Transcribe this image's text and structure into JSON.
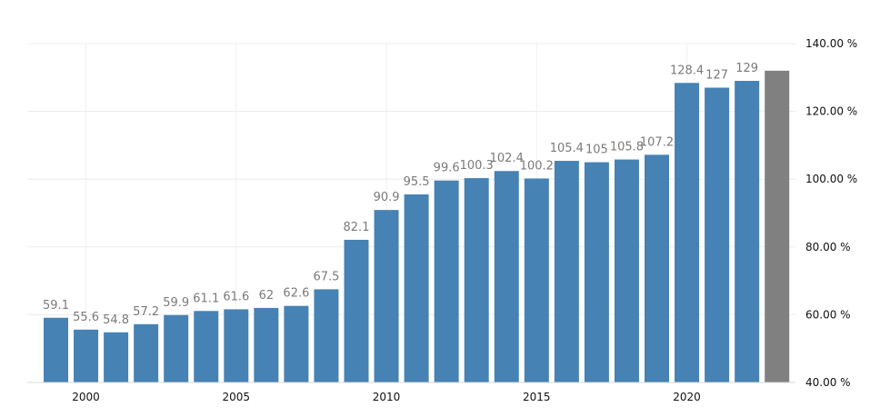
{
  "chart_data": {
    "type": "bar",
    "x": [
      1999,
      2000,
      2001,
      2002,
      2003,
      2004,
      2005,
      2006,
      2007,
      2008,
      2009,
      2010,
      2011,
      2012,
      2013,
      2014,
      2015,
      2016,
      2017,
      2018,
      2019,
      2020,
      2021,
      2022,
      2023
    ],
    "values": [
      59.1,
      55.6,
      54.8,
      57.2,
      59.9,
      61.1,
      61.6,
      62,
      62.6,
      67.5,
      82.1,
      90.9,
      95.5,
      99.6,
      100.3,
      102.4,
      100.2,
      105.4,
      105,
      105.8,
      107.2,
      128.4,
      127,
      129,
      132
    ],
    "data_labels": [
      "59.1",
      "55.6",
      "54.8",
      "57.2",
      "59.9",
      "61.1",
      "61.6",
      "62",
      "62.6",
      "67.5",
      "82.1",
      "90.9",
      "95.5",
      "99.6",
      "100.3",
      "102.4",
      "100.2",
      "105.4",
      "105",
      "105.8",
      "107.2",
      "128.4",
      "127",
      "129",
      ""
    ],
    "bar_colors": [
      "#4682b4",
      "#4682b4",
      "#4682b4",
      "#4682b4",
      "#4682b4",
      "#4682b4",
      "#4682b4",
      "#4682b4",
      "#4682b4",
      "#4682b4",
      "#4682b4",
      "#4682b4",
      "#4682b4",
      "#4682b4",
      "#4682b4",
      "#4682b4",
      "#4682b4",
      "#4682b4",
      "#4682b4",
      "#4682b4",
      "#4682b4",
      "#4682b4",
      "#4682b4",
      "#4682b4",
      "#808080"
    ],
    "x_ticks": [
      2000,
      2005,
      2010,
      2015,
      2020
    ],
    "y_ticks": [
      40,
      60,
      80,
      100,
      120,
      140
    ],
    "y_tick_labels": [
      "40.00 %",
      "60.00 %",
      "80.00 %",
      "100.00 %",
      "120.00 %",
      "140.00 %"
    ],
    "ylim": [
      40,
      140
    ],
    "title": "",
    "xlabel": "",
    "ylabel": "",
    "grid": true,
    "y_axis_side": "right",
    "legend": "none"
  }
}
